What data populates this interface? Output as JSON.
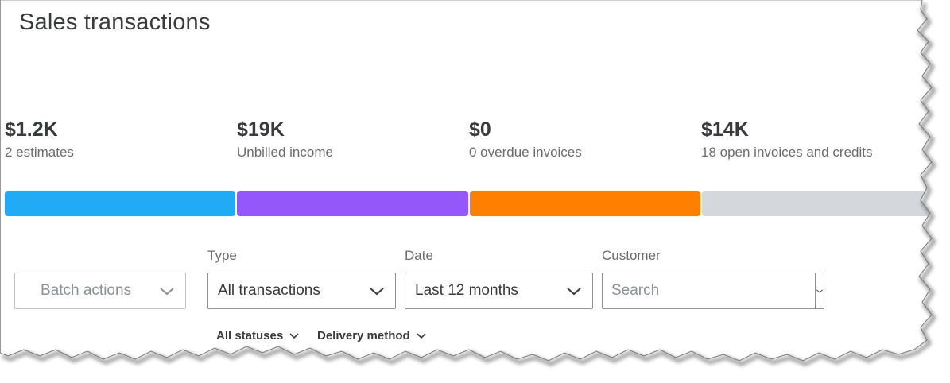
{
  "page": {
    "title": "Sales transactions"
  },
  "metrics": [
    {
      "amount": "$1.2K",
      "label": "2 estimates",
      "color": "#21abf6"
    },
    {
      "amount": "$19K",
      "label": "Unbilled income",
      "color": "#9457fa"
    },
    {
      "amount": "$0",
      "label": "0 overdue invoices",
      "color": "#ff8000"
    },
    {
      "amount": "$14K",
      "label": "18 open invoices and credits",
      "color": "#d4d7dc"
    }
  ],
  "filters": {
    "batch_actions_label": "Batch actions",
    "type": {
      "label": "Type",
      "value": "All transactions"
    },
    "date": {
      "label": "Date",
      "value": "Last 12 months"
    },
    "customer": {
      "label": "Customer",
      "placeholder": "Search"
    },
    "statuses_label": "All statuses",
    "delivery_method_label": "Delivery method"
  },
  "icons": {
    "chevron": "chevron-down-icon",
    "cursor": "mouse-pointer-icon"
  }
}
